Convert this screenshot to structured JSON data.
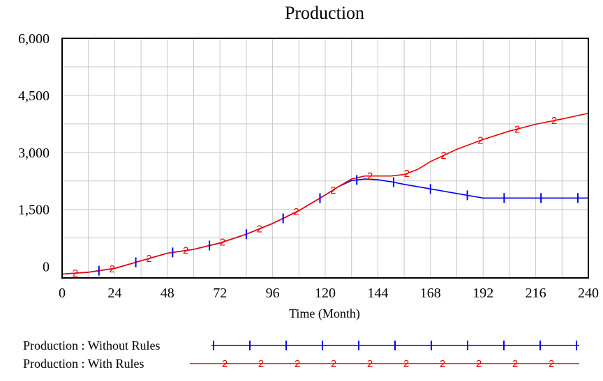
{
  "chart_data": {
    "type": "line",
    "title": "Production",
    "xlabel": "Time (Month)",
    "ylabel": "",
    "xlim": [
      0,
      240
    ],
    "ylim": [
      -300,
      6000
    ],
    "x_ticks": [
      0,
      24,
      48,
      72,
      96,
      120,
      144,
      168,
      192,
      216,
      240
    ],
    "y_ticks": [
      0,
      1500,
      3000,
      4500,
      6000
    ],
    "y_tick_labels": [
      "0",
      "1,500",
      "3,000",
      "4,500",
      "6,000"
    ],
    "grid": true,
    "legend_position": "bottom",
    "series": [
      {
        "name": "Production : Without Rules",
        "marker": "1",
        "color": "#0000ee",
        "x": [
          0,
          12,
          24,
          36,
          48,
          60,
          72,
          84,
          96,
          108,
          120,
          126,
          132,
          138,
          144,
          150,
          156,
          168,
          180,
          192,
          204,
          216,
          228,
          240
        ],
        "y": [
          -200,
          -150,
          -50,
          150,
          350,
          450,
          620,
          850,
          1130,
          1470,
          1880,
          2100,
          2260,
          2300,
          2280,
          2230,
          2160,
          2040,
          1920,
          1800,
          1800,
          1800,
          1800,
          1800
        ]
      },
      {
        "name": "Production : With Rules",
        "marker": "2",
        "color": "#ee0000",
        "x": [
          0,
          12,
          24,
          36,
          48,
          60,
          72,
          84,
          96,
          108,
          120,
          126,
          132,
          138,
          144,
          150,
          156,
          162,
          168,
          180,
          192,
          204,
          216,
          228,
          240
        ],
        "y": [
          -200,
          -150,
          -50,
          150,
          350,
          450,
          620,
          850,
          1130,
          1470,
          1880,
          2100,
          2300,
          2380,
          2380,
          2380,
          2420,
          2550,
          2760,
          3080,
          3340,
          3560,
          3740,
          3880,
          4030
        ]
      }
    ]
  }
}
